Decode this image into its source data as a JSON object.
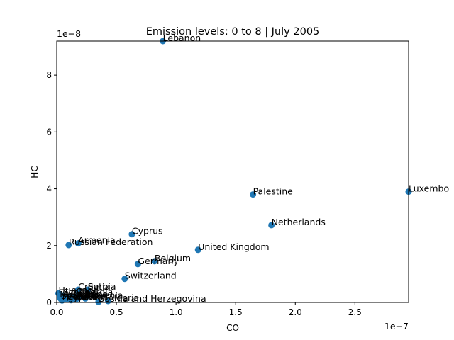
{
  "chart_data": {
    "type": "scatter",
    "title": "Emission levels: 0 to 8 | July 2005",
    "xlabel": "CO",
    "ylabel": "HC",
    "x_exponent_label": "1e−7",
    "y_exponent_label": "1e−8",
    "xlim": [
      0,
      2.95e-07
    ],
    "ylim": [
      0,
      9.2e-08
    ],
    "x_ticks": [
      0,
      5e-08,
      1e-07,
      1.5e-07,
      2e-07,
      2.5e-07
    ],
    "x_tick_labels": [
      "0.0",
      "0.5",
      "1.0",
      "1.5",
      "2.0",
      "2.5"
    ],
    "y_ticks": [
      0,
      2e-08,
      4e-08,
      6e-08,
      8e-08
    ],
    "y_tick_labels": [
      "0",
      "2",
      "4",
      "6",
      "8"
    ],
    "grid": false,
    "point_color": "#1f77b4",
    "points": [
      {
        "label": "Lebanon",
        "x": 8.9e-08,
        "y": 9.2e-08
      },
      {
        "label": "Luxembo",
        "x": 2.95e-07,
        "y": 3.9e-08
      },
      {
        "label": "Palestine",
        "x": 1.645e-07,
        "y": 3.8e-08
      },
      {
        "label": "Netherlands",
        "x": 1.8e-07,
        "y": 2.72e-08
      },
      {
        "label": "Cyprus",
        "x": 6.3e-08,
        "y": 2.4e-08
      },
      {
        "label": "Armenia",
        "x": 1.8e-08,
        "y": 2.08e-08
      },
      {
        "label": "Russian Federation",
        "x": 1e-08,
        "y": 2.02e-08
      },
      {
        "label": "United Kingdom",
        "x": 1.185e-07,
        "y": 1.85e-08
      },
      {
        "label": "Belgium",
        "x": 8.2e-08,
        "y": 1.45e-08
      },
      {
        "label": "Germany",
        "x": 6.8e-08,
        "y": 1.35e-08
      },
      {
        "label": "Switzerland",
        "x": 5.7e-08,
        "y": 8.3e-09
      },
      {
        "label": "Croatia",
        "x": 1.8e-08,
        "y": 4.5e-09
      },
      {
        "label": "Serbia",
        "x": 2.6e-08,
        "y": 4.5e-09
      },
      {
        "label": "Hungary",
        "x": 1.5e-09,
        "y": 3.2e-09
      },
      {
        "label": "Georgia",
        "x": 1.8e-08,
        "y": 2.6e-09
      },
      {
        "label": "Bulgaria",
        "x": 1.2e-08,
        "y": 2e-09
      },
      {
        "label": "Macedonia",
        "x": 2.5e-09,
        "y": 1.8e-09
      },
      {
        "label": "Italy",
        "x": 1.8e-08,
        "y": 1.5e-09
      },
      {
        "label": "Spain",
        "x": 3.5e-09,
        "y": 1.2e-09
      },
      {
        "label": "Czechia",
        "x": 5e-09,
        "y": 2.5e-09
      },
      {
        "label": "Greece",
        "x": 8e-09,
        "y": 1e-09
      },
      {
        "label": "Slovakia",
        "x": 1.2e-08,
        "y": 8e-10
      },
      {
        "label": "Poland",
        "x": 1.6e-08,
        "y": 1.1e-09
      },
      {
        "label": "Slovenia",
        "x": 2.4e-08,
        "y": 1.4e-09
      },
      {
        "label": "Algeria",
        "x": 4.3e-08,
        "y": 5e-10
      },
      {
        "label": "Bosnia and Herzegovina",
        "x": 3.5e-08,
        "y": 2e-10
      },
      {
        "label": "Egypt",
        "x": 4.5e-09,
        "y": 7e-10
      },
      {
        "label": "Ukraine",
        "x": 8e-09,
        "y": 1.6e-09
      }
    ]
  }
}
